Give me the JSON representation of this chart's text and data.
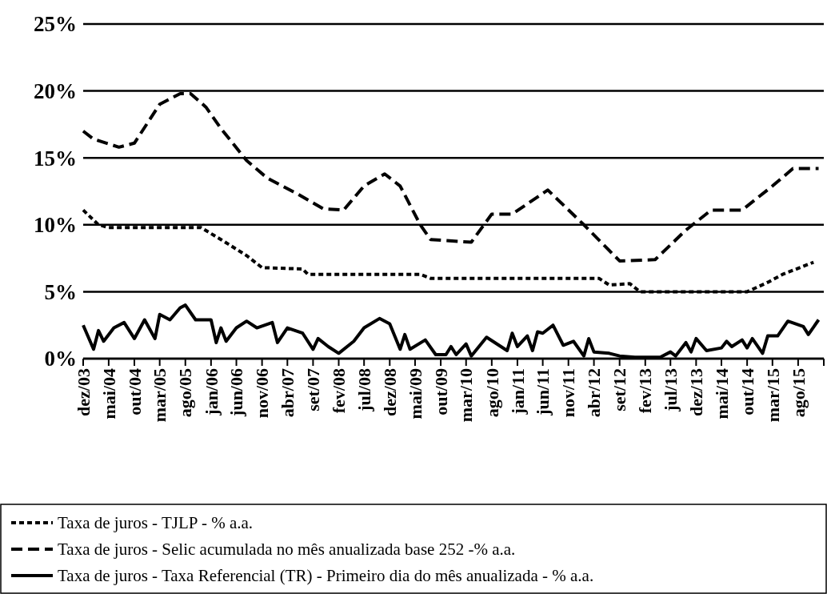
{
  "chart_data": {
    "type": "line",
    "xlim": [
      "2003-12",
      "2016-01"
    ],
    "xticks": [
      {
        "value": "2003-12",
        "label": "dez/03"
      },
      {
        "value": "2004-05",
        "label": "mai/04"
      },
      {
        "value": "2004-10",
        "label": "out/04"
      },
      {
        "value": "2005-03",
        "label": "mar/05"
      },
      {
        "value": "2005-08",
        "label": "ago/05"
      },
      {
        "value": "2006-01",
        "label": "jan/06"
      },
      {
        "value": "2006-06",
        "label": "jun/06"
      },
      {
        "value": "2006-11",
        "label": "nov/06"
      },
      {
        "value": "2007-04",
        "label": "abr/07"
      },
      {
        "value": "2007-09",
        "label": "set/07"
      },
      {
        "value": "2008-02",
        "label": "fev/08"
      },
      {
        "value": "2008-07",
        "label": "jul/08"
      },
      {
        "value": "2008-12",
        "label": "dez/08"
      },
      {
        "value": "2009-05",
        "label": "mai/09"
      },
      {
        "value": "2009-10",
        "label": "out/09"
      },
      {
        "value": "2010-03",
        "label": "mar/10"
      },
      {
        "value": "2010-08",
        "label": "ago/10"
      },
      {
        "value": "2011-01",
        "label": "jan/11"
      },
      {
        "value": "2011-06",
        "label": "jun/11"
      },
      {
        "value": "2011-11",
        "label": "nov/11"
      },
      {
        "value": "2012-04",
        "label": "abr/12"
      },
      {
        "value": "2012-09",
        "label": "set/12"
      },
      {
        "value": "2013-02",
        "label": "fev/13"
      },
      {
        "value": "2013-07",
        "label": "jul/13"
      },
      {
        "value": "2013-12",
        "label": "dez/13"
      },
      {
        "value": "2014-05",
        "label": "mai/14"
      },
      {
        "value": "2014-10",
        "label": "out/14"
      },
      {
        "value": "2015-03",
        "label": "mar/15"
      },
      {
        "value": "2015-08",
        "label": "ago/15"
      },
      {
        "value": "2016-01",
        "label": null
      }
    ],
    "ylim": [
      0,
      25
    ],
    "yticks": [
      {
        "value": 0,
        "label": "0%"
      },
      {
        "value": 5,
        "label": "5%"
      },
      {
        "value": 10,
        "label": "10%"
      },
      {
        "value": 15,
        "label": "15%"
      },
      {
        "value": 20,
        "label": "20%"
      },
      {
        "value": 25,
        "label": "25%"
      }
    ],
    "grid": "y",
    "legend": "bottom",
    "series": [
      {
        "name": "Taxa de juros - TJLP - % a.a.",
        "color": "#000000",
        "line_style": "dotted",
        "x": [
          "2003-12",
          "2004-03",
          "2004-05",
          "2005-11",
          "2006-03",
          "2006-08",
          "2006-11",
          "2007-07",
          "2007-08",
          "2009-06",
          "2009-08",
          "2012-05",
          "2012-07",
          "2012-11",
          "2013-01",
          "2014-10",
          "2015-02",
          "2015-05",
          "2015-11"
        ],
        "values": [
          11.1,
          10.0,
          9.8,
          9.8,
          8.9,
          7.7,
          6.8,
          6.7,
          6.3,
          6.3,
          6.0,
          6.0,
          5.5,
          5.6,
          5.0,
          5.0,
          5.7,
          6.3,
          7.2
        ]
      },
      {
        "name": "Taxa de juros - Selic acumulada no mês anualizada base 252 -% a.a.",
        "color": "#000000",
        "line_style": "dashed",
        "x": [
          "2003-12",
          "2004-02",
          "2004-07",
          "2004-10",
          "2005-03",
          "2005-07",
          "2005-09",
          "2005-12",
          "2006-03",
          "2006-08",
          "2006-12",
          "2007-06",
          "2007-11",
          "2008-03",
          "2008-07",
          "2008-11",
          "2009-02",
          "2009-06",
          "2009-08",
          "2010-04",
          "2010-08",
          "2010-12",
          "2011-07",
          "2012-02",
          "2012-09",
          "2013-04",
          "2013-10",
          "2014-03",
          "2014-09",
          "2015-03",
          "2015-07",
          "2015-12"
        ],
        "values": [
          17.0,
          16.4,
          15.8,
          16.1,
          19.0,
          19.8,
          19.8,
          18.8,
          17.2,
          14.8,
          13.5,
          12.3,
          11.2,
          11.1,
          12.9,
          13.8,
          12.9,
          10.0,
          8.9,
          8.7,
          10.8,
          10.8,
          12.6,
          10.0,
          7.3,
          7.4,
          9.6,
          11.1,
          11.1,
          12.9,
          14.2,
          14.2
        ]
      },
      {
        "name": "Taxa de juros - Taxa Referencial (TR) - Primeiro dia do mês anualizada - % a.a.",
        "color": "#000000",
        "line_style": "solid",
        "x": [
          "2003-12",
          "2004-02",
          "2004-03",
          "2004-04",
          "2004-06",
          "2004-08",
          "2004-10",
          "2004-12",
          "2005-02",
          "2005-03",
          "2005-05",
          "2005-07",
          "2005-08",
          "2005-10",
          "2006-01",
          "2006-02",
          "2006-03",
          "2006-04",
          "2006-06",
          "2006-08",
          "2006-10",
          "2007-01",
          "2007-02",
          "2007-04",
          "2007-07",
          "2007-09",
          "2007-10",
          "2007-12",
          "2008-02",
          "2008-05",
          "2008-07",
          "2008-10",
          "2008-12",
          "2009-02",
          "2009-03",
          "2009-04",
          "2009-07",
          "2009-09",
          "2009-11",
          "2009-12",
          "2010-01",
          "2010-03",
          "2010-04",
          "2010-07",
          "2010-11",
          "2010-12",
          "2011-01",
          "2011-03",
          "2011-04",
          "2011-05",
          "2011-06",
          "2011-08",
          "2011-10",
          "2011-12",
          "2012-02",
          "2012-03",
          "2012-04",
          "2012-07",
          "2012-09",
          "2012-12",
          "2013-05",
          "2013-07",
          "2013-08",
          "2013-10",
          "2013-11",
          "2013-12",
          "2014-02",
          "2014-05",
          "2014-06",
          "2014-07",
          "2014-09",
          "2014-10",
          "2014-11",
          "2015-01",
          "2015-02",
          "2015-04",
          "2015-06",
          "2015-09",
          "2015-10",
          "2015-12"
        ],
        "values": [
          2.5,
          0.7,
          2.1,
          1.3,
          2.3,
          2.7,
          1.5,
          2.9,
          1.5,
          3.3,
          2.9,
          3.8,
          4.0,
          2.9,
          2.9,
          1.2,
          2.3,
          1.3,
          2.3,
          2.8,
          2.3,
          2.7,
          1.2,
          2.3,
          1.9,
          0.7,
          1.5,
          0.9,
          0.4,
          1.3,
          2.3,
          3.0,
          2.6,
          0.7,
          1.8,
          0.7,
          1.4,
          0.3,
          0.3,
          0.9,
          0.3,
          1.1,
          0.2,
          1.6,
          0.6,
          1.9,
          0.9,
          1.7,
          0.6,
          2.0,
          1.9,
          2.5,
          1.0,
          1.3,
          0.2,
          1.5,
          0.5,
          0.4,
          0.2,
          0.1,
          0.1,
          0.5,
          0.2,
          1.2,
          0.5,
          1.5,
          0.6,
          0.8,
          1.3,
          0.9,
          1.4,
          0.8,
          1.5,
          0.4,
          1.7,
          1.7,
          2.8,
          2.4,
          1.8,
          2.9
        ]
      }
    ]
  }
}
